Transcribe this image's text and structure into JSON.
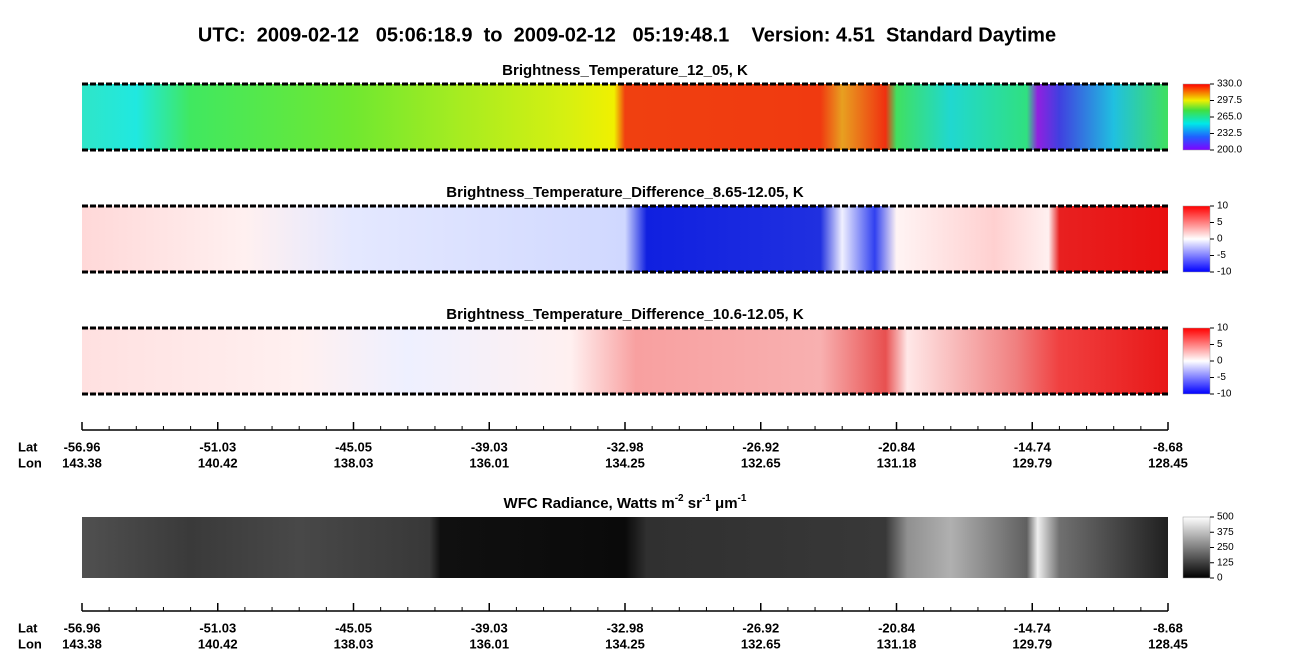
{
  "title": "UTC:  2009-02-12   05:06:18.9  to  2009-02-12   05:19:48.1    Version: 4.51  Standard Daytime",
  "panels": [
    {
      "title": "Brightness_Temperature_12_05, K",
      "colorbar_ticks": [
        {
          "value": 330,
          "label": "330.0"
        },
        297.5,
        {
          "value": 265,
          "label": "265.0"
        },
        232.5,
        {
          "value": 200,
          "label": "200.0"
        }
      ]
    },
    {
      "title": "Brightness_Temperature_Difference_8.65-12.05, K",
      "colorbar_ticks": [
        10,
        5,
        0,
        -5,
        -10
      ]
    },
    {
      "title": "Brightness_Temperature_Difference_10.6-12.05, K",
      "colorbar_ticks": [
        10,
        5,
        0,
        -5,
        -10
      ]
    },
    {
      "title_parts": [
        "WFC Radiance, Watts m",
        "-2",
        " sr",
        "-1",
        " μm",
        "-1"
      ],
      "colorbar_ticks": [
        500,
        375,
        250,
        125,
        0
      ]
    }
  ],
  "axes": [
    {
      "lat_label": "Lat",
      "lon_label": "Lon",
      "lat": [
        -56.96,
        -51.03,
        -45.05,
        -39.03,
        -32.98,
        -26.92,
        -20.84,
        -14.74,
        -8.68
      ],
      "lon": [
        143.38,
        140.42,
        138.03,
        136.01,
        134.25,
        132.65,
        131.18,
        129.79,
        128.45
      ]
    },
    {
      "lat_label": "Lat",
      "lon_label": "Lon",
      "lat": [
        -56.96,
        -51.03,
        -45.05,
        -39.03,
        -32.98,
        -26.92,
        -20.84,
        -14.74,
        -8.68
      ],
      "lon": [
        143.38,
        140.42,
        138.03,
        136.01,
        134.25,
        132.65,
        131.18,
        129.79,
        128.45
      ]
    }
  ]
}
